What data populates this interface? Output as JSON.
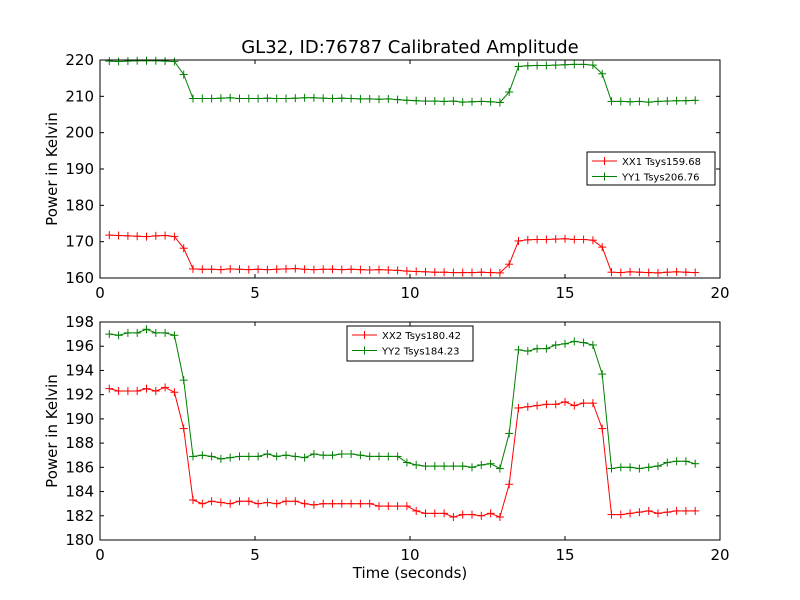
{
  "title": "GL32, ID:76787 Calibrated Amplitude",
  "chart_data": [
    {
      "type": "line",
      "xlabel": "",
      "ylabel": "Power in Kelvin",
      "xlim": [
        0,
        20
      ],
      "ylim": [
        160,
        220
      ],
      "xticks": [
        "0",
        "5",
        "10",
        "15",
        "20"
      ],
      "yticks": [
        "160",
        "170",
        "180",
        "190",
        "200",
        "210",
        "220"
      ],
      "grid": false,
      "legend_position": "center-right",
      "x": [
        0.3,
        0.6,
        0.9,
        1.2,
        1.5,
        1.8,
        2.1,
        2.4,
        2.7,
        3.0,
        3.3,
        3.6,
        3.9,
        4.2,
        4.5,
        4.8,
        5.1,
        5.4,
        5.7,
        6.0,
        6.3,
        6.6,
        6.9,
        7.2,
        7.5,
        7.8,
        8.1,
        8.4,
        8.7,
        9.0,
        9.3,
        9.6,
        9.9,
        10.2,
        10.5,
        10.8,
        11.1,
        11.4,
        11.7,
        12.0,
        12.3,
        12.6,
        12.9,
        13.2,
        13.5,
        13.8,
        14.1,
        14.4,
        14.7,
        15.0,
        15.3,
        15.6,
        15.9,
        16.2,
        16.5,
        16.8,
        17.1,
        17.4,
        17.7,
        18.0,
        18.3,
        18.6,
        18.9,
        19.2
      ],
      "series": [
        {
          "name": "XX1 Tsys159.68",
          "color": "#ff0000",
          "values": [
            171.8,
            171.7,
            171.6,
            171.5,
            171.4,
            171.6,
            171.7,
            171.4,
            168.2,
            162.5,
            162.4,
            162.4,
            162.3,
            162.5,
            162.4,
            162.3,
            162.4,
            162.3,
            162.4,
            162.5,
            162.6,
            162.4,
            162.3,
            162.4,
            162.4,
            162.3,
            162.4,
            162.3,
            162.2,
            162.3,
            162.2,
            162.1,
            161.9,
            161.8,
            161.7,
            161.6,
            161.6,
            161.5,
            161.5,
            161.5,
            161.6,
            161.5,
            161.4,
            163.8,
            170.2,
            170.5,
            170.6,
            170.6,
            170.7,
            170.8,
            170.6,
            170.6,
            170.4,
            168.5,
            161.6,
            161.5,
            161.7,
            161.6,
            161.5,
            161.4,
            161.6,
            161.7,
            161.6,
            161.5
          ]
        },
        {
          "name": "YY1 Tsys206.76",
          "color": "#008000",
          "values": [
            219.7,
            219.6,
            219.7,
            219.8,
            219.8,
            219.8,
            219.7,
            219.6,
            216.0,
            209.4,
            209.4,
            209.4,
            209.5,
            209.6,
            209.4,
            209.4,
            209.4,
            209.5,
            209.4,
            209.4,
            209.5,
            209.6,
            209.6,
            209.5,
            209.4,
            209.5,
            209.4,
            209.3,
            209.3,
            209.2,
            209.3,
            209.1,
            208.9,
            208.8,
            208.7,
            208.7,
            208.6,
            208.7,
            208.4,
            208.5,
            208.6,
            208.5,
            208.3,
            211.2,
            218.2,
            218.4,
            218.5,
            218.5,
            218.6,
            218.7,
            218.8,
            218.8,
            218.6,
            216.2,
            208.6,
            208.6,
            208.5,
            208.6,
            208.4,
            208.6,
            208.7,
            208.8,
            208.8,
            208.9
          ]
        }
      ]
    },
    {
      "type": "line",
      "xlabel": "Time (seconds)",
      "ylabel": "Power in Kelvin",
      "xlim": [
        0,
        20
      ],
      "ylim": [
        180,
        198
      ],
      "xticks": [
        "0",
        "5",
        "10",
        "15",
        "20"
      ],
      "yticks": [
        "180",
        "182",
        "184",
        "186",
        "188",
        "190",
        "192",
        "194",
        "196",
        "198"
      ],
      "grid": false,
      "legend_position": "upper-center",
      "x": [
        0.3,
        0.6,
        0.9,
        1.2,
        1.5,
        1.8,
        2.1,
        2.4,
        2.7,
        3.0,
        3.3,
        3.6,
        3.9,
        4.2,
        4.5,
        4.8,
        5.1,
        5.4,
        5.7,
        6.0,
        6.3,
        6.6,
        6.9,
        7.2,
        7.5,
        7.8,
        8.1,
        8.4,
        8.7,
        9.0,
        9.3,
        9.6,
        9.9,
        10.2,
        10.5,
        10.8,
        11.1,
        11.4,
        11.7,
        12.0,
        12.3,
        12.6,
        12.9,
        13.2,
        13.5,
        13.8,
        14.1,
        14.4,
        14.7,
        15.0,
        15.3,
        15.6,
        15.9,
        16.2,
        16.5,
        16.8,
        17.1,
        17.4,
        17.7,
        18.0,
        18.3,
        18.6,
        18.9,
        19.2
      ],
      "series": [
        {
          "name": "XX2 Tsys180.42",
          "color": "#ff0000",
          "values": [
            192.5,
            192.3,
            192.3,
            192.3,
            192.5,
            192.3,
            192.6,
            192.2,
            189.2,
            183.3,
            183.0,
            183.2,
            183.1,
            183.0,
            183.2,
            183.2,
            183.0,
            183.1,
            183.0,
            183.2,
            183.2,
            183.0,
            182.9,
            183.0,
            183.0,
            183.0,
            183.0,
            183.0,
            183.0,
            182.8,
            182.8,
            182.8,
            182.8,
            182.4,
            182.2,
            182.2,
            182.2,
            181.9,
            182.1,
            182.1,
            182.0,
            182.2,
            181.9,
            184.6,
            190.9,
            191.0,
            191.1,
            191.2,
            191.2,
            191.4,
            191.1,
            191.3,
            191.3,
            189.2,
            182.1,
            182.1,
            182.2,
            182.3,
            182.4,
            182.2,
            182.3,
            182.4,
            182.4,
            182.4
          ]
        },
        {
          "name": "YY2 Tsys184.23",
          "color": "#008000",
          "values": [
            197.0,
            196.9,
            197.1,
            197.1,
            197.4,
            197.1,
            197.1,
            196.9,
            193.2,
            186.9,
            187.0,
            186.9,
            186.7,
            186.8,
            186.9,
            186.9,
            186.9,
            187.1,
            186.9,
            187.0,
            186.9,
            186.8,
            187.1,
            187.0,
            187.0,
            187.1,
            187.1,
            187.0,
            186.9,
            186.9,
            186.9,
            186.9,
            186.4,
            186.2,
            186.1,
            186.1,
            186.1,
            186.1,
            186.1,
            186.0,
            186.2,
            186.3,
            185.9,
            188.8,
            195.7,
            195.6,
            195.8,
            195.8,
            196.1,
            196.2,
            196.4,
            196.3,
            196.1,
            193.7,
            185.9,
            186.0,
            186.0,
            185.9,
            186.0,
            186.1,
            186.4,
            186.5,
            186.5,
            186.3
          ]
        }
      ]
    }
  ]
}
